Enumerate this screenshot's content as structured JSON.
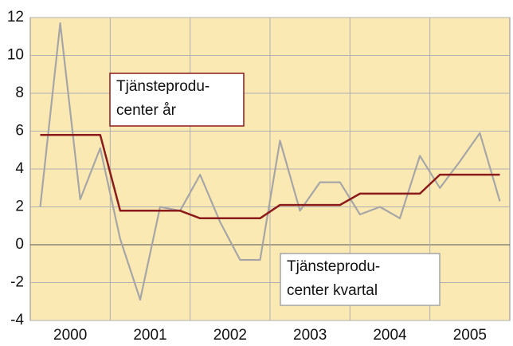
{
  "chart_data": {
    "type": "line",
    "categories": [
      "2000",
      "2001",
      "2002",
      "2003",
      "2004",
      "2005"
    ],
    "series": [
      {
        "name": "Tjänsteproducenter kvartal",
        "color": "#a6a6a6",
        "values": [
          [
            2.0,
            11.7,
            2.4,
            5.1
          ],
          [
            0.3,
            -2.9,
            2.0,
            1.8
          ],
          [
            3.7,
            1.2,
            -0.8,
            -0.8
          ],
          [
            5.5,
            1.8,
            3.3,
            3.3
          ],
          [
            1.6,
            2.0,
            1.4,
            4.7
          ],
          [
            3.0,
            4.4,
            5.9,
            2.3
          ]
        ]
      },
      {
        "name": "Tjänsteproducenter år",
        "color": "#8b1a1a",
        "values": [
          [
            5.8,
            5.8,
            5.8,
            5.8
          ],
          [
            1.8,
            1.8,
            1.8,
            1.8
          ],
          [
            1.4,
            1.4,
            1.4,
            1.4
          ],
          [
            2.1,
            2.1,
            2.1,
            2.1
          ],
          [
            2.7,
            2.7,
            2.7,
            2.7
          ],
          [
            3.7,
            3.7,
            3.7,
            3.7
          ]
        ]
      }
    ],
    "annotations": [
      {
        "lines": [
          "Tjänsteprodu-",
          "center år"
        ],
        "series": 1
      },
      {
        "lines": [
          "Tjänsteprodu-",
          "center kvartal"
        ],
        "series": 0
      }
    ],
    "ylim": [
      -4,
      12
    ],
    "yticks": [
      -4,
      -2,
      0,
      2,
      4,
      6,
      8,
      10,
      12
    ],
    "grid": true
  }
}
